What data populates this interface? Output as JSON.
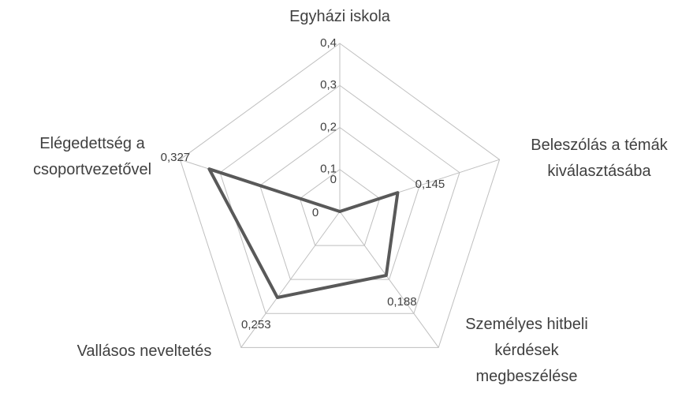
{
  "chart_data": {
    "type": "radar",
    "categories": [
      "Egyházi iskola",
      "Beleszólás a témák\nkiválasztásába",
      "Személyes hitbeli\nkérdések\nmegbeszélése",
      "Vallásos neveltetés",
      "Elégedettség a\ncsoportvezetővel"
    ],
    "values": [
      0,
      0.145,
      0.188,
      0.253,
      0.327
    ],
    "value_labels": [
      "0",
      "0,145",
      "0,188",
      "0,253",
      "0,327"
    ],
    "color": "#595959",
    "ylim": [
      0,
      0.4
    ],
    "yticks": [
      0,
      {
        "value": 0.1,
        "label": "0,1"
      },
      {
        "value": 0.2,
        "label": "0,2"
      },
      {
        "value": 0.3,
        "label": "0,3"
      },
      {
        "value": 0.4,
        "label": "0,4"
      }
    ],
    "grid": true
  }
}
